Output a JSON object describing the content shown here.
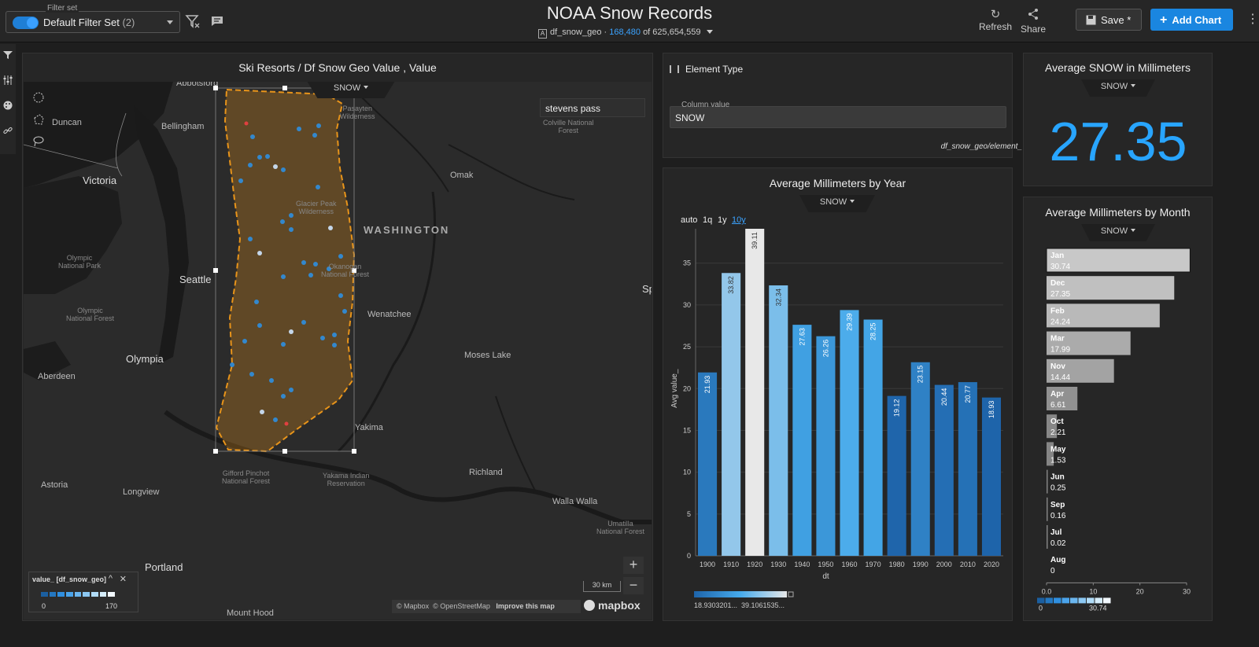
{
  "header": {
    "filter_set_label": "Filter set",
    "filter_set_value": "Default Filter Set",
    "filter_set_count": "(2)",
    "title": "NOAA Snow Records",
    "dataset_badge": "A",
    "dataset_name": "df_snow_geo",
    "dataset_filtered": "168,480",
    "dataset_total": "of 625,654,559",
    "refresh_label": "Refresh",
    "share_label": "Share",
    "save_label": "Save *",
    "add_chart_label": "Add Chart"
  },
  "map_panel": {
    "title": "Ski Resorts / Df Snow Geo Value , Value",
    "tab": "SNOW",
    "search_value": "stevens pass",
    "region_label": "WASHINGTON",
    "places": [
      {
        "name": "Abbotsford",
        "kind": "lbl"
      },
      {
        "name": "Duncan",
        "kind": "lbl"
      },
      {
        "name": "Bellingham",
        "kind": "lbl"
      },
      {
        "name": "Victoria",
        "kind": "big"
      },
      {
        "name": "Omak",
        "kind": "lbl"
      },
      {
        "name": "Seattle",
        "kind": "big"
      },
      {
        "name": "Wenatchee",
        "kind": "lbl"
      },
      {
        "name": "Olympia",
        "kind": "big"
      },
      {
        "name": "Moses Lake",
        "kind": "lbl"
      },
      {
        "name": "Aberdeen",
        "kind": "lbl"
      },
      {
        "name": "Yakima",
        "kind": "lbl"
      },
      {
        "name": "Astoria",
        "kind": "lbl"
      },
      {
        "name": "Longview",
        "kind": "lbl"
      },
      {
        "name": "Richland",
        "kind": "lbl"
      },
      {
        "name": "Walla Walla",
        "kind": "lbl"
      },
      {
        "name": "Portland",
        "kind": "big"
      },
      {
        "name": "Mount Hood",
        "kind": "lbl"
      },
      {
        "name": "Sp",
        "kind": "big"
      }
    ],
    "parks": [
      "Pasayten\nWilderness",
      "Colville National\nForest",
      "Glacier Peak\nWilderness",
      "Olympic\nNational Park",
      "Okanogan\nNational Forest",
      "Olympic\nNational Forest",
      "Gifford Pinchot\nNational Forest",
      "Yakama Indian\nReservation",
      "Umatilla\nNational Forest"
    ],
    "legend_title": "value_ [df_snow_geo]",
    "legend_min": "0",
    "legend_max": "170",
    "scale": "30 km",
    "attribution_1": "© Mapbox",
    "attribution_2": "© OpenStreetMap",
    "attribution_3": "Improve this map",
    "brand": "mapbox",
    "zoom_in": "+",
    "zoom_out": "−",
    "colors": {
      "polygon": "#e8941a",
      "point": "#2f8fe0",
      "point_hi": "#cfe6ff",
      "red": "#e04040"
    }
  },
  "element_type": {
    "title": "Element Type",
    "field_label": "Column value",
    "field_value": "SNOW",
    "source": "df_snow_geo/element_"
  },
  "kpi": {
    "title": "Average SNOW in Millimeters",
    "tab": "SNOW",
    "value": "27.35"
  },
  "year_chart": {
    "title": "Average Millimeters by Year",
    "tab": "SNOW",
    "timeframes": [
      "auto",
      "1q",
      "1y",
      "10y"
    ],
    "active_timeframe": "10y",
    "color_min": "18.9303201...",
    "color_max": "39.1061535..."
  },
  "month_chart": {
    "title": "Average Millimeters by Month",
    "tab": "SNOW",
    "legend_min": "0",
    "legend_max": "30.74"
  },
  "chart_data": [
    {
      "type": "bar",
      "title": "Average Millimeters by Year",
      "xlabel": "dt",
      "ylabel": "Avg value_",
      "ylim": [
        0,
        39.11
      ],
      "yticks": [
        0,
        5,
        10,
        15,
        20,
        25,
        30,
        35
      ],
      "categories": [
        "1900",
        "1910",
        "1920",
        "1930",
        "1940",
        "1950",
        "1960",
        "1970",
        "1980",
        "1990",
        "2000",
        "2010",
        "2020"
      ],
      "values": [
        21.93,
        33.82,
        39.11,
        32.34,
        27.63,
        26.26,
        29.39,
        28.25,
        19.12,
        23.15,
        20.44,
        20.77,
        18.93
      ],
      "value_labels": [
        "21.93",
        "33.82",
        "39.11",
        "32.34",
        "27.63",
        "26.26",
        "29.39",
        "28.25",
        "19.12",
        "23.15",
        "20.44",
        "20.77",
        "18.93"
      ]
    },
    {
      "type": "bar",
      "orientation": "horizontal",
      "title": "Average Millimeters by Month",
      "xlim": [
        0,
        30
      ],
      "xticks": [
        "0.0",
        "10",
        "20",
        "30"
      ],
      "categories": [
        "Jan",
        "Dec",
        "Feb",
        "Mar",
        "Nov",
        "Apr",
        "Oct",
        "May",
        "Jun",
        "Sep",
        "Jul",
        "Aug"
      ],
      "values": [
        30.74,
        27.35,
        24.24,
        17.99,
        14.44,
        6.61,
        2.21,
        1.53,
        0.25,
        0.16,
        0.02,
        0
      ],
      "value_labels": [
        "30.74",
        "27.35",
        "24.24",
        "17.99",
        "14.44",
        "6.61",
        "2.21",
        "1.53",
        "0.25",
        "0.16",
        "0.02",
        "0"
      ]
    }
  ]
}
